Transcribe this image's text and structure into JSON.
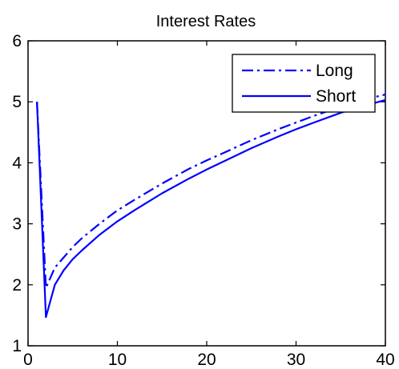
{
  "chart_data": {
    "type": "line",
    "title": "Interest Rates",
    "xlabel": "",
    "ylabel": "",
    "xlim": [
      0,
      40
    ],
    "ylim": [
      1,
      6
    ],
    "xticks": [
      "0",
      "10",
      "20",
      "30",
      "40"
    ],
    "yticks": [
      "1",
      "2",
      "3",
      "4",
      "5",
      "6"
    ],
    "grid": false,
    "legend": "top-right",
    "series": [
      {
        "name": "Long",
        "style": "dash-dot",
        "color": "#0000ff",
        "x": [
          1,
          2,
          3,
          4,
          5,
          6,
          8,
          10,
          12,
          15,
          18,
          20,
          22,
          25,
          28,
          30,
          32,
          35,
          38,
          40
        ],
        "y": [
          5.0,
          1.95,
          2.28,
          2.45,
          2.62,
          2.76,
          3.0,
          3.22,
          3.4,
          3.66,
          3.9,
          4.04,
          4.17,
          4.37,
          4.55,
          4.66,
          4.77,
          4.92,
          5.05,
          5.12
        ]
      },
      {
        "name": "Short",
        "style": "solid",
        "color": "#0000ff",
        "x": [
          1,
          2,
          3,
          4,
          5,
          6,
          8,
          10,
          12,
          15,
          18,
          20,
          22,
          25,
          28,
          30,
          32,
          35,
          38,
          40
        ],
        "y": [
          5.0,
          1.47,
          2.0,
          2.24,
          2.42,
          2.56,
          2.82,
          3.04,
          3.23,
          3.5,
          3.74,
          3.89,
          4.03,
          4.24,
          4.43,
          4.55,
          4.66,
          4.82,
          4.95,
          5.03
        ]
      }
    ]
  }
}
